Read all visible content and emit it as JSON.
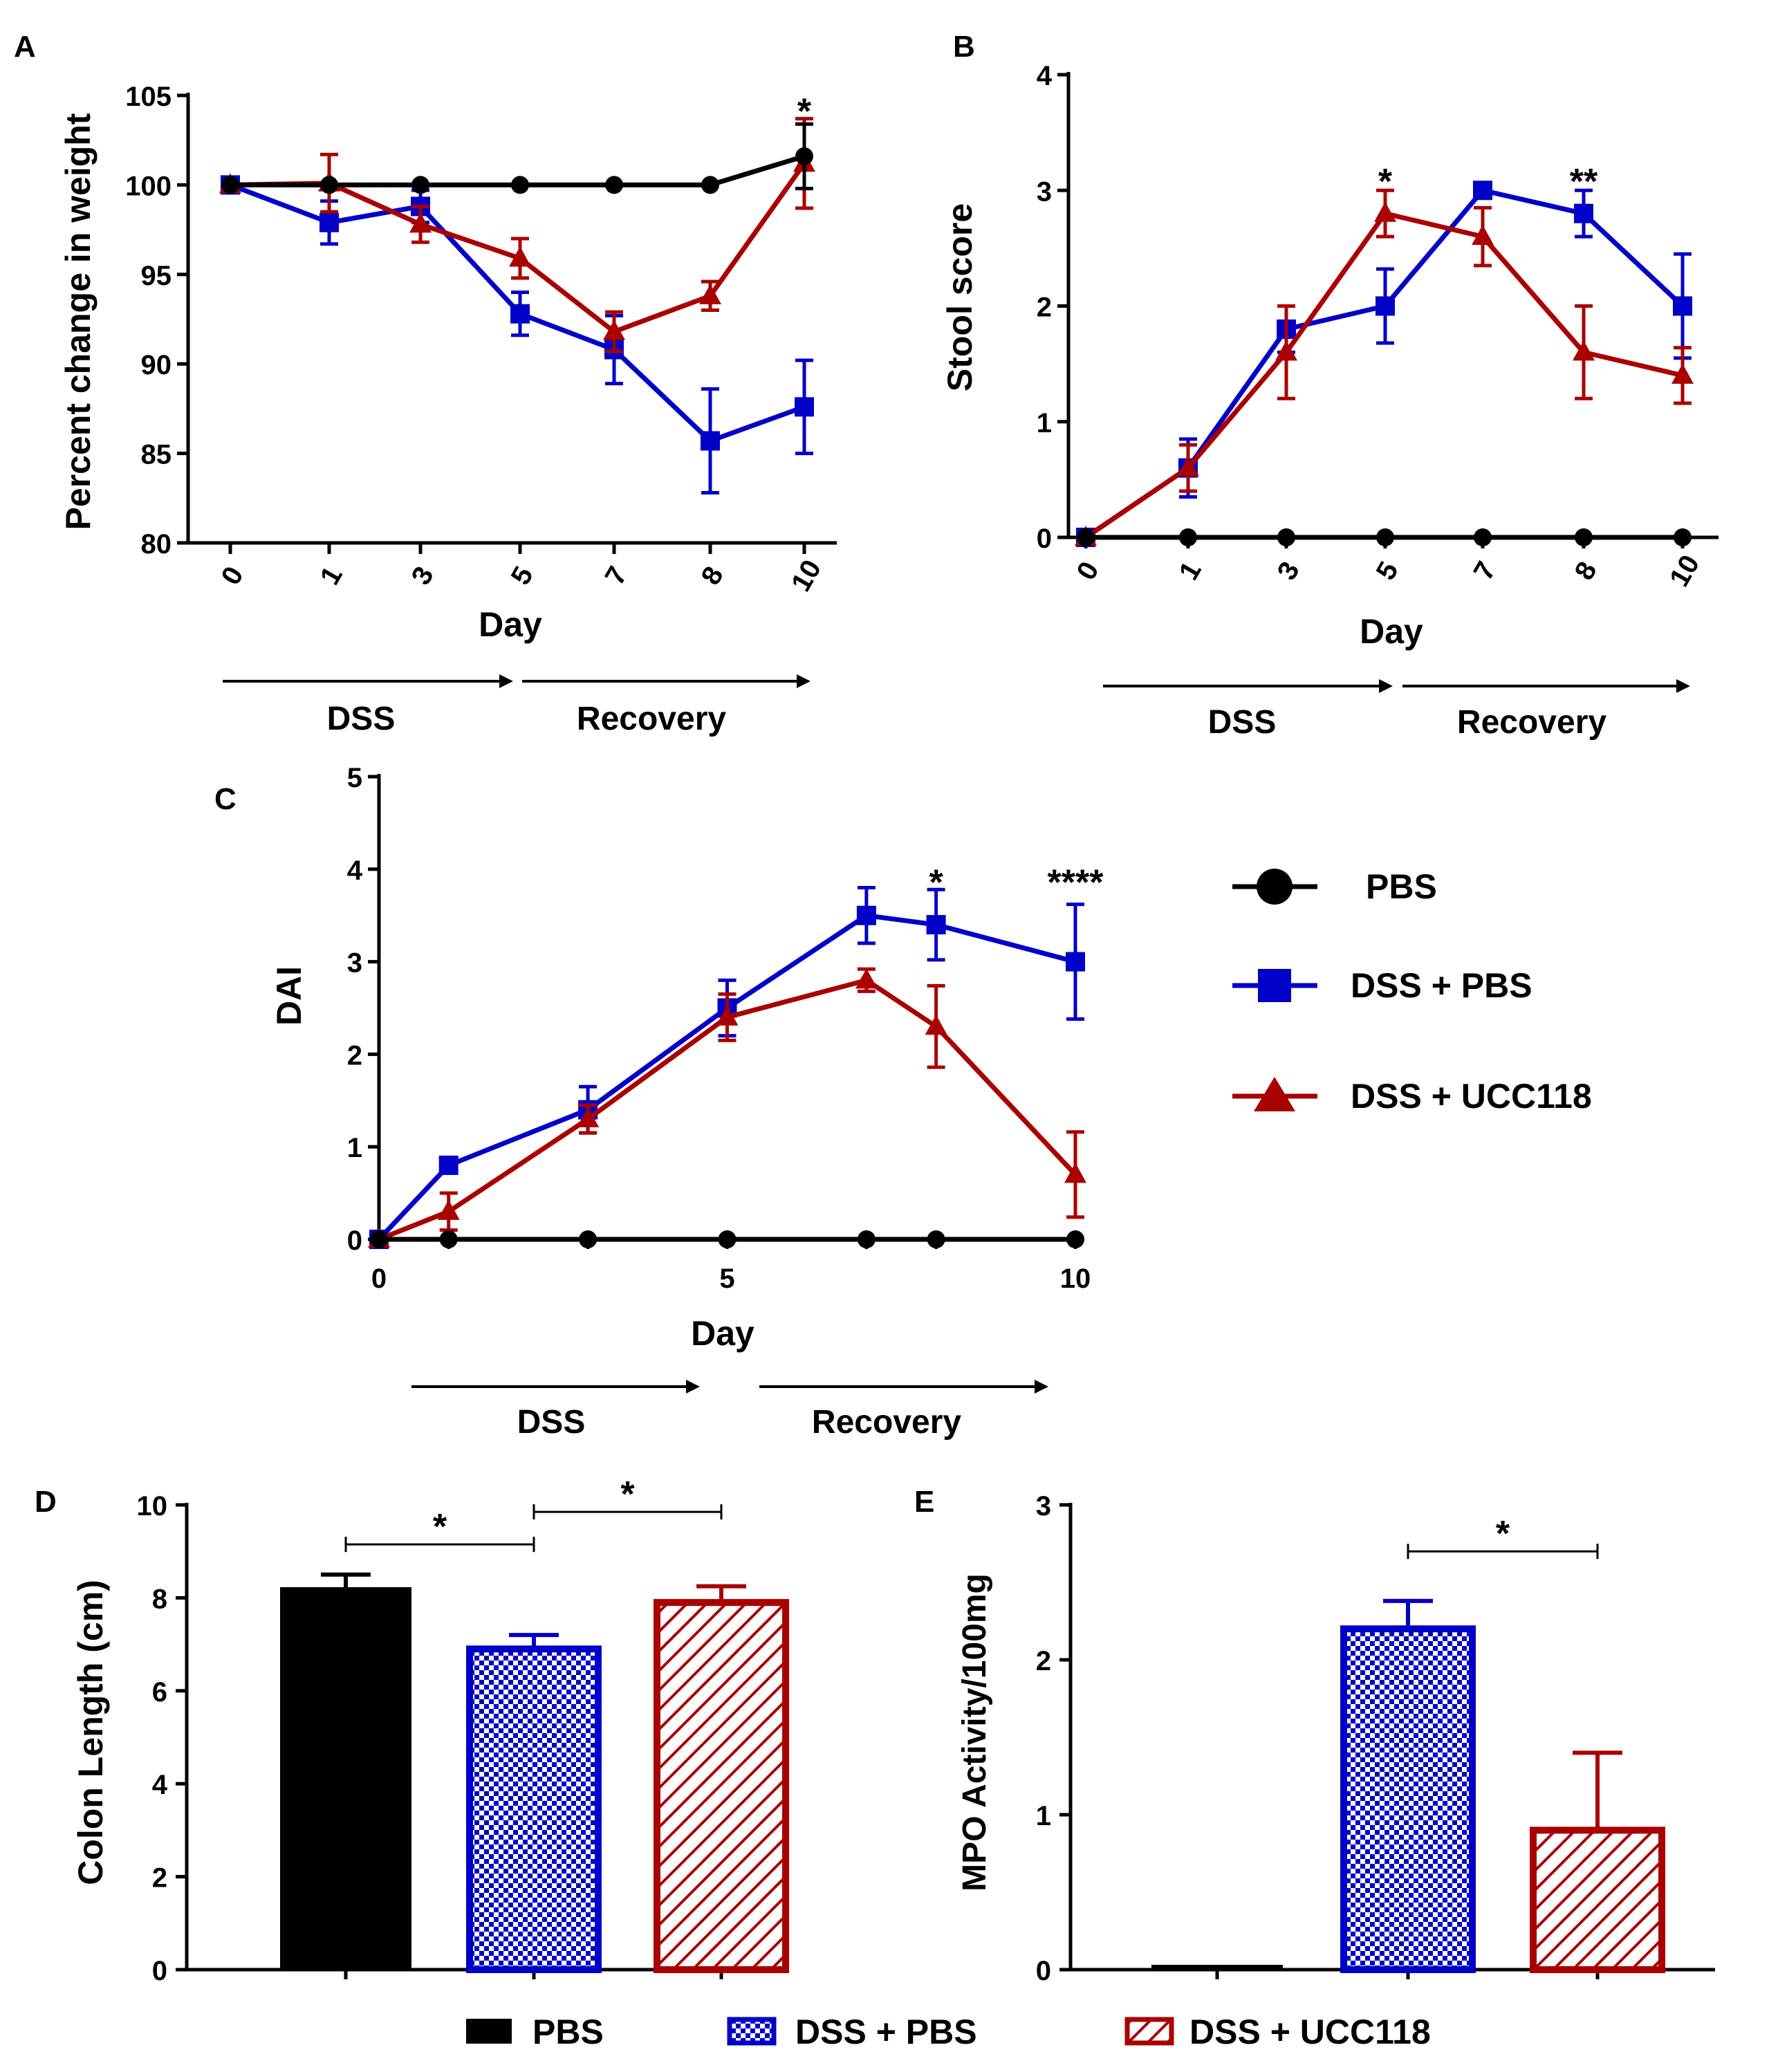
{
  "colors": {
    "pbs": "#000000",
    "dss_pbs": "#0000c8",
    "dss_ucc118": "#aa0000"
  },
  "phases": {
    "dss": "DSS",
    "recovery": "Recovery"
  },
  "legend_lines": {
    "items": [
      {
        "label": "PBS",
        "color": "#000000",
        "marker": "circle"
      },
      {
        "label": "DSS + PBS",
        "color": "#0000c8",
        "marker": "square"
      },
      {
        "label": "DSS + UCC118",
        "color": "#aa0000",
        "marker": "triangle"
      }
    ]
  },
  "legend_bars": {
    "items": [
      {
        "label": "PBS",
        "color": "#000000",
        "pattern": "solid"
      },
      {
        "label": "DSS + PBS",
        "color": "#0000c8",
        "pattern": "checker"
      },
      {
        "label": "DSS + UCC118",
        "color": "#aa0000",
        "pattern": "hatch"
      }
    ]
  },
  "chart_data": [
    {
      "id": "A",
      "panel_label": "A",
      "type": "line",
      "xlabel": "Day",
      "ylabel": "Percent change in weight",
      "categorical_x": true,
      "x": [
        "0",
        "1",
        "3",
        "5",
        "7",
        "8",
        "10"
      ],
      "ylim": [
        80,
        105
      ],
      "yticks": [
        "80",
        "85",
        "90",
        "95",
        "100",
        "105"
      ],
      "series": [
        {
          "name": "PBS",
          "color": "#000000",
          "marker": "circle",
          "values": [
            100,
            100,
            100,
            100,
            100,
            100,
            101.6
          ],
          "errors": [
            0,
            0,
            0,
            0,
            0,
            0,
            1.8
          ]
        },
        {
          "name": "DSS + PBS",
          "color": "#0000c8",
          "marker": "square",
          "values": [
            100,
            97.9,
            98.8,
            92.8,
            90.8,
            85.7,
            87.6
          ],
          "errors": [
            0,
            1.2,
            0.9,
            1.2,
            1.9,
            2.9,
            2.6
          ]
        },
        {
          "name": "DSS + UCC118",
          "color": "#aa0000",
          "marker": "triangle",
          "values": [
            100,
            100.1,
            97.8,
            95.9,
            91.8,
            93.8,
            101.2
          ],
          "errors": [
            0,
            1.6,
            1.0,
            1.1,
            1.1,
            0.8,
            2.5
          ]
        }
      ],
      "annotations": [
        {
          "text": "*",
          "x": "10",
          "y": 104.6
        }
      ]
    },
    {
      "id": "B",
      "panel_label": "B",
      "type": "line",
      "xlabel": "Day",
      "ylabel": "Stool score",
      "categorical_x": true,
      "x": [
        "0",
        "1",
        "3",
        "5",
        "7",
        "8",
        "10"
      ],
      "ylim": [
        0,
        4
      ],
      "yticks": [
        "0",
        "1",
        "2",
        "3",
        "4"
      ],
      "series": [
        {
          "name": "PBS",
          "color": "#000000",
          "marker": "circle",
          "values": [
            0,
            0,
            0,
            0,
            0,
            0,
            0
          ],
          "errors": [
            0,
            0,
            0,
            0,
            0,
            0,
            0
          ]
        },
        {
          "name": "DSS + PBS",
          "color": "#0000c8",
          "marker": "square",
          "values": [
            0,
            0.6,
            1.8,
            2.0,
            3.0,
            2.8,
            2.0
          ],
          "errors": [
            0,
            0.25,
            0.2,
            0.32,
            0,
            0.2,
            0.45
          ]
        },
        {
          "name": "DSS + UCC118",
          "color": "#aa0000",
          "marker": "triangle",
          "values": [
            0,
            0.6,
            1.6,
            2.8,
            2.6,
            1.6,
            1.4
          ],
          "errors": [
            0,
            0.2,
            0.4,
            0.2,
            0.25,
            0.4,
            0.24
          ]
        }
      ],
      "annotations": [
        {
          "text": "*",
          "x": "5",
          "y": 3.15
        },
        {
          "text": "**",
          "x": "8",
          "y": 3.15
        }
      ]
    },
    {
      "id": "C",
      "panel_label": "C",
      "type": "line",
      "xlabel": "Day",
      "ylabel": "DAI",
      "categorical_x": false,
      "xlim": [
        0,
        10
      ],
      "xticks": [
        "0",
        "5",
        "10"
      ],
      "ylim": [
        0,
        5
      ],
      "yticks": [
        "0",
        "1",
        "2",
        "3",
        "4",
        "5"
      ],
      "series": [
        {
          "name": "PBS",
          "color": "#000000",
          "marker": "circle",
          "x": [
            0,
            1,
            3,
            5,
            7,
            8,
            10
          ],
          "values": [
            0,
            0,
            0,
            0,
            0,
            0,
            0
          ],
          "errors": [
            0,
            0,
            0,
            0,
            0,
            0,
            0
          ]
        },
        {
          "name": "DSS + PBS",
          "color": "#0000c8",
          "marker": "square",
          "x": [
            0,
            1,
            3,
            5,
            7,
            8,
            10
          ],
          "values": [
            0,
            0.8,
            1.4,
            2.5,
            3.5,
            3.4,
            3.0
          ],
          "errors": [
            0,
            0,
            0.25,
            0.3,
            0.3,
            0.38,
            0.62
          ]
        },
        {
          "name": "DSS + UCC118",
          "color": "#aa0000",
          "marker": "triangle",
          "x": [
            0,
            1,
            3,
            5,
            7,
            8,
            10
          ],
          "values": [
            0,
            0.3,
            1.3,
            2.4,
            2.8,
            2.3,
            0.7
          ],
          "errors": [
            0,
            0.2,
            0.15,
            0.25,
            0.12,
            0.44,
            0.46
          ]
        }
      ],
      "annotations": [
        {
          "text": "*",
          "x": 8,
          "y": 3.95
        },
        {
          "text": "****",
          "x": 10,
          "y": 3.95
        }
      ]
    },
    {
      "id": "D",
      "panel_label": "D",
      "type": "bar",
      "ylabel": "Colon  Length  (cm)",
      "categories": [
        "PBS",
        "DSS + PBS",
        "DSS + UCC118"
      ],
      "values": [
        8.2,
        6.9,
        7.9
      ],
      "errors": [
        0.3,
        0.3,
        0.35
      ],
      "ylim": [
        0,
        10
      ],
      "yticks": [
        "0",
        "2",
        "4",
        "6",
        "8",
        "10"
      ],
      "significance": [
        {
          "from": 0,
          "to": 1,
          "text": "*",
          "y": 9.15
        },
        {
          "from": 1,
          "to": 2,
          "text": "*",
          "y": 9.85
        }
      ]
    },
    {
      "id": "E",
      "panel_label": "E",
      "type": "bar",
      "ylabel": "MPO Activity/100mg",
      "categories": [
        "PBS",
        "DSS + PBS",
        "DSS + UCC118"
      ],
      "values": [
        0,
        2.2,
        0.9
      ],
      "errors": [
        0,
        0.18,
        0.5
      ],
      "ylim": [
        0,
        3
      ],
      "yticks": [
        "0",
        "1",
        "2",
        "3"
      ],
      "significance": [
        {
          "from": 1,
          "to": 2,
          "text": "*",
          "y": 2.7
        }
      ]
    }
  ]
}
